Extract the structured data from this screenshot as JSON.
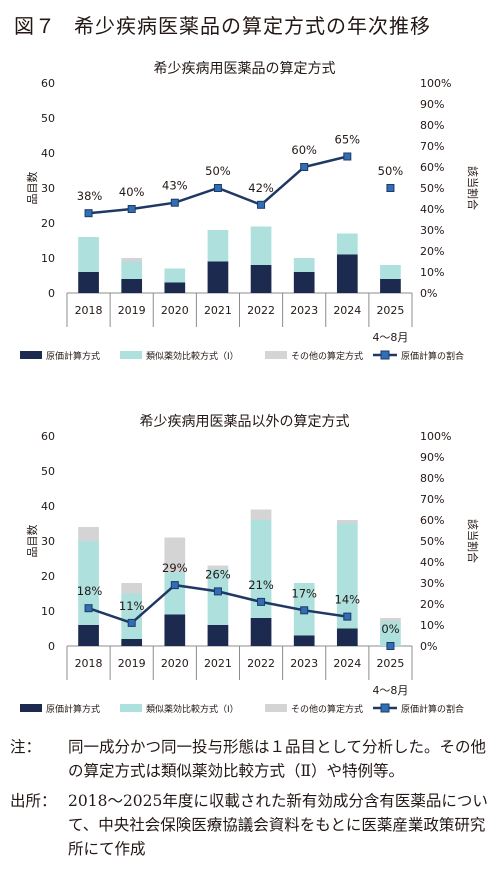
{
  "figure": {
    "number": "図７",
    "title": "希少疾病医薬品の算定方式の年次推移"
  },
  "chart_data": [
    {
      "type": "bar",
      "title": "希少疾病用医薬品の算定方式",
      "ylabel": "品目数",
      "y2label": "該当割合",
      "ylim": [
        0,
        60
      ],
      "y2lim": [
        0,
        100
      ],
      "yticks": [
        "0",
        "10",
        "20",
        "30",
        "40",
        "50",
        "60"
      ],
      "y2ticks": [
        "0%",
        "10%",
        "20%",
        "30%",
        "40%",
        "50%",
        "60%",
        "70%",
        "80%",
        "90%",
        "100%"
      ],
      "categories": [
        "2018",
        "2019",
        "2020",
        "2021",
        "2022",
        "2023",
        "2024",
        "2025"
      ],
      "category_sublabel": "4～8月",
      "stacked": true,
      "series": [
        {
          "name": "原価計算方式",
          "kind": "bar",
          "color": "#1b2a4e",
          "values": [
            6,
            4,
            3,
            9,
            8,
            6,
            11,
            4
          ]
        },
        {
          "name": "類似薬効比較方式（Ⅰ）",
          "kind": "bar",
          "color": "#aee0dd",
          "values": [
            10,
            5,
            4,
            9,
            11,
            4,
            6,
            4
          ]
        },
        {
          "name": "その他の算定方式",
          "kind": "bar",
          "color": "#d4d4d4",
          "values": [
            0,
            1,
            0,
            0,
            0,
            0,
            0,
            0
          ]
        },
        {
          "name": "原価計算の割合",
          "kind": "line",
          "axis": "right",
          "color": "#203864",
          "values": [
            38,
            40,
            43,
            50,
            42,
            60,
            65,
            50
          ],
          "labels": [
            "38%",
            "40%",
            "43%",
            "50%",
            "42%",
            "60%",
            "65%",
            "50%"
          ],
          "line_break_before_last": true
        }
      ],
      "legend_position": "bottom",
      "grid": false
    },
    {
      "type": "bar",
      "title": "希少疾病用医薬品以外の算定方式",
      "ylabel": "品目数",
      "y2label": "該当割合",
      "ylim": [
        0,
        60
      ],
      "y2lim": [
        0,
        100
      ],
      "yticks": [
        "0",
        "10",
        "20",
        "30",
        "40",
        "50",
        "60"
      ],
      "y2ticks": [
        "0%",
        "10%",
        "20%",
        "30%",
        "40%",
        "50%",
        "60%",
        "70%",
        "80%",
        "90%",
        "100%"
      ],
      "categories": [
        "2018",
        "2019",
        "2020",
        "2021",
        "2022",
        "2023",
        "2024",
        "2025"
      ],
      "category_sublabel": "4～8月",
      "stacked": true,
      "series": [
        {
          "name": "原価計算方式",
          "kind": "bar",
          "color": "#1b2a4e",
          "values": [
            6,
            2,
            9,
            6,
            8,
            3,
            5,
            0
          ]
        },
        {
          "name": "類似薬効比較方式（Ⅰ）",
          "kind": "bar",
          "color": "#aee0dd",
          "values": [
            24,
            13,
            12,
            16,
            28,
            15,
            30,
            7
          ]
        },
        {
          "name": "その他の算定方式",
          "kind": "bar",
          "color": "#d4d4d4",
          "values": [
            4,
            3,
            10,
            1,
            3,
            0,
            1,
            1
          ]
        },
        {
          "name": "原価計算の割合",
          "kind": "line",
          "axis": "right",
          "color": "#203864",
          "values": [
            18,
            11,
            29,
            26,
            21,
            17,
            14,
            0
          ],
          "labels": [
            "18%",
            "11%",
            "29%",
            "26%",
            "21%",
            "17%",
            "14%",
            "0%"
          ],
          "line_break_before_last": true
        }
      ],
      "legend_position": "bottom",
      "grid": false
    }
  ],
  "notes": {
    "note_head": "注：",
    "note_text": "同一成分かつ同一投与形態は１品目として分析した。その他の算定方式は類似薬効比較方式（Ⅱ）や特例等。",
    "source_head": "出所：",
    "source_text": "2018～2025年度に収載された新有効成分含有医薬品について、中央社会保険医療協議会資料をもとに医薬産業政策研究所にて作成"
  }
}
